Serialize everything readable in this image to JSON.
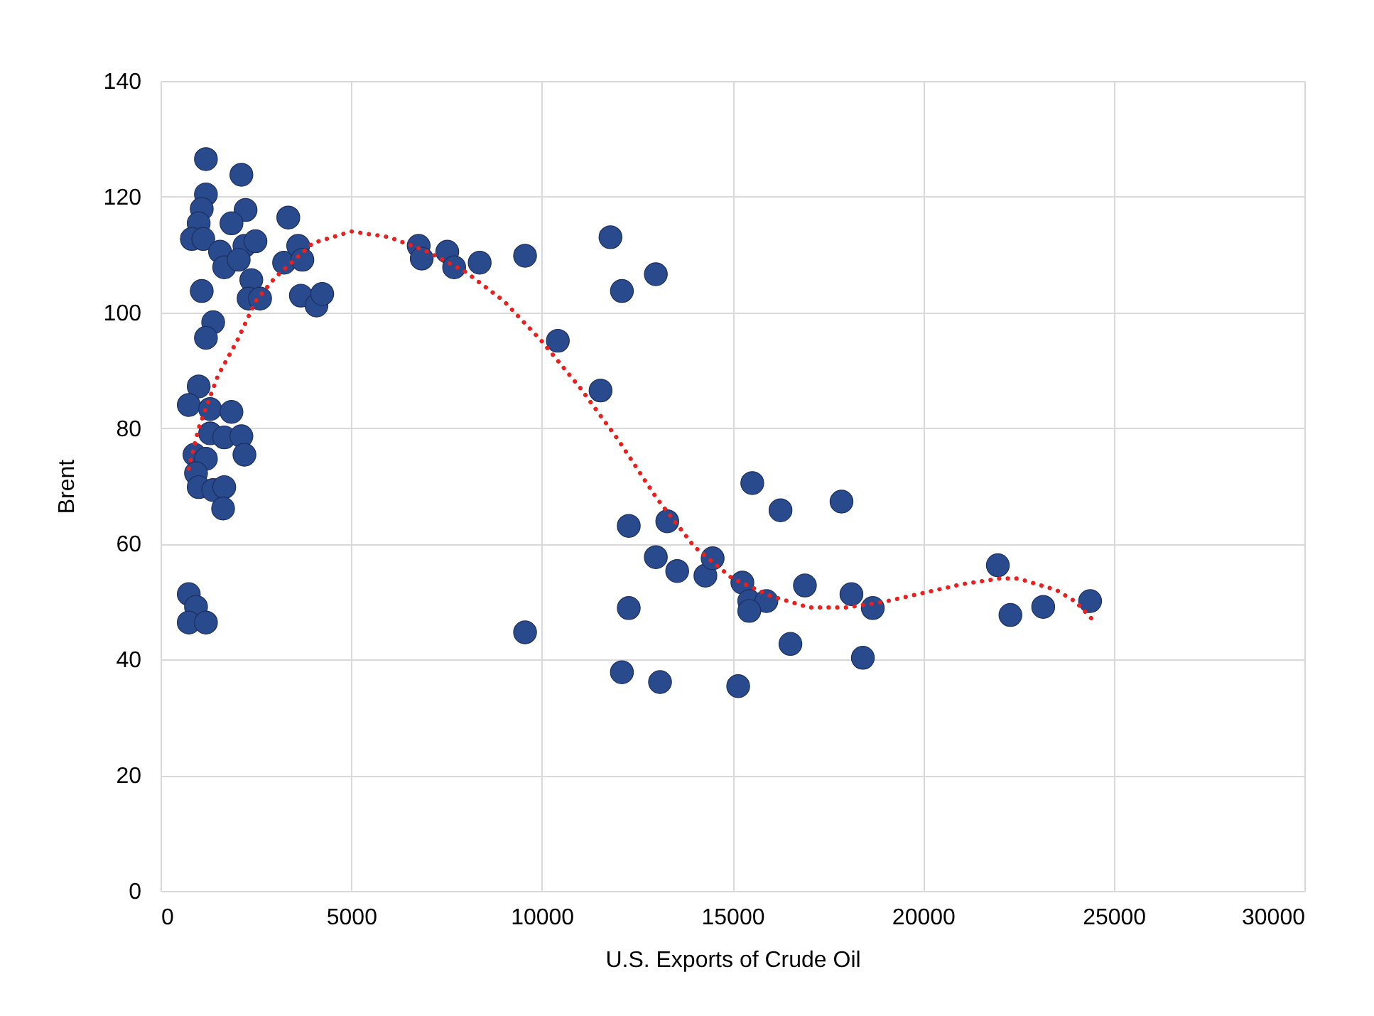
{
  "chart_data": {
    "type": "scatter",
    "xlabel": "U.S. Exports of Crude Oil",
    "ylabel": "Brent",
    "xlim": [
      0,
      30000
    ],
    "xticks": [
      0,
      5000,
      10000,
      15000,
      20000,
      25000,
      30000
    ],
    "ylim": [
      0,
      140
    ],
    "yticks": [
      0,
      20,
      40,
      60,
      80,
      100,
      120,
      140
    ],
    "grid": true,
    "series": [
      {
        "color": "#2a4a8e",
        "marker": "circle",
        "x": [
          1190,
          2120,
          1190,
          1080,
          1000,
          820,
          1120,
          2230,
          1860,
          3350,
          1560,
          2200,
          2490,
          1670,
          2050,
          3240,
          3610,
          3720,
          2380,
          2310,
          2610,
          1080,
          3680,
          4090,
          4240,
          1380,
          1190,
          1000,
          740,
          1300,
          1860,
          1300,
          1670,
          2120,
          890,
          2200,
          1190,
          930,
          1000,
          1380,
          1670,
          1640,
          740,
          930,
          740,
          1190,
          6770,
          6850,
          7520,
          7700,
          8370,
          9560,
          11800,
          12990,
          12100,
          10420,
          11540,
          9560,
          15520,
          16260,
          17860,
          12280,
          13290,
          12990,
          13550,
          14290,
          14480,
          15260,
          15440,
          15890,
          15440,
          16900,
          18120,
          18680,
          12280,
          16520,
          18420,
          12100,
          13100,
          15150,
          21960,
          22290,
          23150,
          24380
        ],
        "values": [
          126.5,
          123.8,
          120.4,
          117.9,
          115.4,
          112.7,
          112.7,
          117.7,
          115.4,
          116.4,
          110.5,
          111.5,
          112.3,
          107.8,
          109.1,
          108.6,
          111.5,
          109.1,
          105.6,
          102.4,
          102.4,
          103.7,
          102.9,
          101.2,
          103.2,
          98.3,
          95.6,
          87.2,
          84.0,
          83.3,
          82.8,
          79.1,
          78.4,
          78.6,
          75.4,
          75.4,
          74.7,
          72.2,
          69.8,
          69.3,
          69.8,
          66.1,
          51.3,
          49.1,
          46.4,
          46.4,
          111.5,
          109.3,
          110.5,
          107.8,
          108.6,
          109.8,
          113.0,
          106.6,
          103.7,
          95.1,
          86.5,
          44.7,
          70.5,
          65.8,
          67.3,
          63.1,
          63.9,
          57.7,
          55.3,
          54.5,
          57.5,
          53.3,
          50.1,
          50.1,
          48.4,
          52.8,
          51.3,
          48.9,
          48.9,
          42.7,
          40.3,
          37.8,
          36.1,
          35.4,
          56.3,
          47.7,
          49.1,
          50.1
        ]
      },
      {
        "type": "line",
        "color": "#e8201e",
        "line_style": "dotted",
        "marker": "none",
        "x": [
          740,
          1000,
          1500,
          2000,
          2500,
          3000,
          4000,
          5000,
          6000,
          7000,
          8000,
          9000,
          10000,
          11000,
          12000,
          13000,
          14000,
          15000,
          16000,
          17000,
          18000,
          19000,
          20000,
          21000,
          22000,
          22500,
          23500,
          24000,
          24500
        ],
        "values": [
          73,
          80,
          89,
          95,
          102,
          106,
          112,
          114,
          113,
          110.5,
          107,
          102,
          95,
          87,
          78,
          68,
          59.5,
          54,
          51,
          49,
          49,
          50,
          51.5,
          53,
          54,
          54,
          52,
          50,
          46.5
        ]
      }
    ]
  }
}
